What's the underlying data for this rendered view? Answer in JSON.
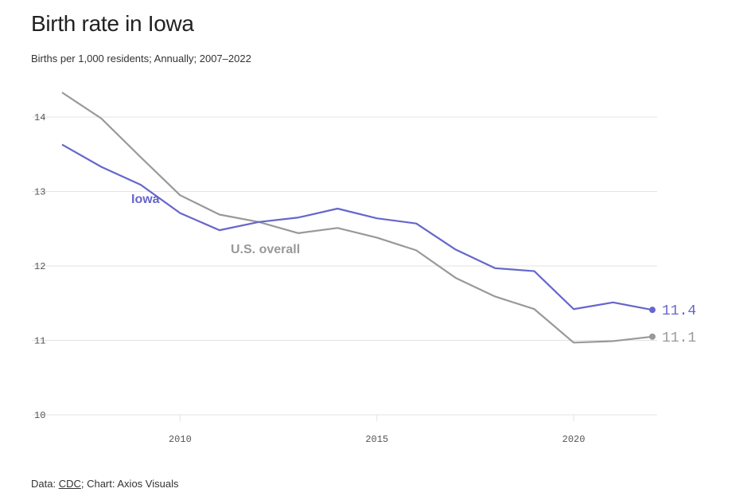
{
  "title": "Birth rate in Iowa",
  "subtitle": "Births per 1,000 residents; Annually; 2007–2022",
  "footer": {
    "prefix": "Data: ",
    "source": "CDC",
    "suffix": "; Chart: Axios Visuals"
  },
  "colors": {
    "iowa": "#6666cc",
    "us": "#999999",
    "grid": "#e3e3e3"
  },
  "chart_data": {
    "type": "line",
    "title": "Birth rate in Iowa",
    "subtitle": "Births per 1,000 residents; Annually; 2007–2022",
    "x": [
      2007,
      2008,
      2009,
      2010,
      2011,
      2012,
      2013,
      2014,
      2015,
      2016,
      2017,
      2018,
      2019,
      2020,
      2021,
      2022
    ],
    "xticks": [
      2010,
      2015,
      2020
    ],
    "xlim": [
      2007,
      2022
    ],
    "yticks": [
      10,
      11,
      12,
      13,
      14
    ],
    "ylim": [
      10,
      14.4
    ],
    "grid": true,
    "series": [
      {
        "name": "Iowa",
        "key": "iowa",
        "values": [
          13.63,
          13.33,
          13.09,
          12.71,
          12.48,
          12.59,
          12.65,
          12.77,
          12.64,
          12.57,
          12.22,
          11.97,
          11.93,
          11.42,
          11.51,
          11.41
        ],
        "end_label": "11.4",
        "label": "Iowa"
      },
      {
        "name": "U.S. overall",
        "key": "us",
        "values": [
          14.33,
          13.98,
          13.46,
          12.95,
          12.69,
          12.59,
          12.44,
          12.51,
          12.38,
          12.21,
          11.84,
          11.59,
          11.42,
          10.97,
          10.99,
          11.05
        ],
        "end_label": "11.1",
        "label": "U.S. overall"
      }
    ]
  }
}
